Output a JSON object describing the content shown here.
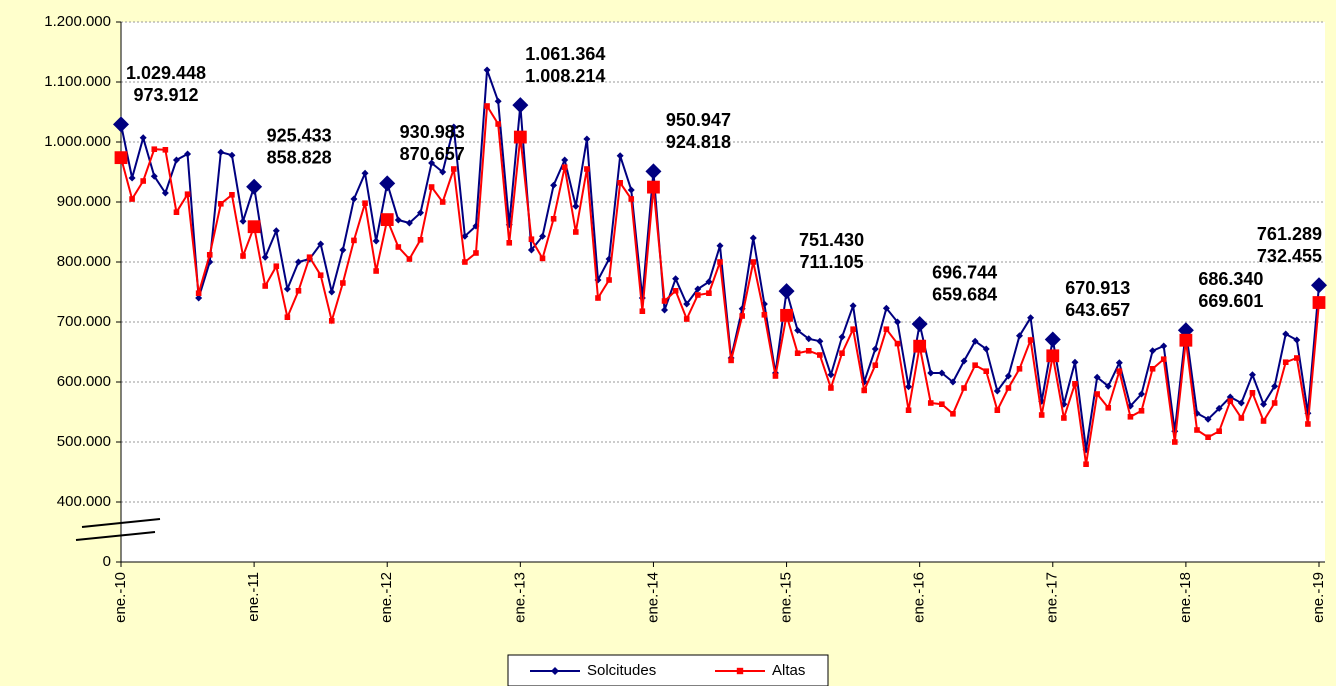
{
  "chart_data": {
    "type": "line",
    "categories": [
      "ene.-10",
      null,
      null,
      null,
      null,
      null,
      null,
      null,
      null,
      null,
      null,
      null,
      "ene.-11",
      null,
      null,
      null,
      null,
      null,
      null,
      null,
      null,
      null,
      null,
      null,
      "ene.-12",
      null,
      null,
      null,
      null,
      null,
      null,
      null,
      null,
      null,
      null,
      null,
      "ene.-13",
      null,
      null,
      null,
      null,
      null,
      null,
      null,
      null,
      null,
      null,
      null,
      "ene.-14",
      null,
      null,
      null,
      null,
      null,
      null,
      null,
      null,
      null,
      null,
      null,
      "ene.-15",
      null,
      null,
      null,
      null,
      null,
      null,
      null,
      null,
      null,
      null,
      null,
      "ene.-16",
      null,
      null,
      null,
      null,
      null,
      null,
      null,
      null,
      null,
      null,
      null,
      "ene.-17",
      null,
      null,
      null,
      null,
      null,
      null,
      null,
      null,
      null,
      null,
      null,
      "ene.-18",
      null,
      null,
      null,
      null,
      null,
      null,
      null,
      null,
      null,
      null,
      null,
      "ene.-19"
    ],
    "series": [
      {
        "name": "Solcitudes",
        "color": "#000080",
        "marker": "diamond",
        "values": [
          1029448,
          940000,
          1007000,
          943000,
          915000,
          970000,
          980000,
          740000,
          800000,
          983000,
          978000,
          868000,
          925433,
          808000,
          852000,
          755000,
          800000,
          805000,
          830000,
          750000,
          820000,
          905000,
          948000,
          835000,
          930983,
          870000,
          865000,
          882000,
          965000,
          950000,
          1025000,
          843000,
          860000,
          1120000,
          1068000,
          862000,
          1061364,
          820000,
          843000,
          928000,
          970000,
          893000,
          1005000,
          770000,
          805000,
          977000,
          920000,
          740000,
          950947,
          720000,
          772000,
          730000,
          755000,
          767000,
          827000,
          640000,
          722000,
          840000,
          730000,
          615000,
          751430,
          686000,
          672000,
          668000,
          612000,
          675000,
          727000,
          600000,
          655000,
          723000,
          700000,
          592000,
          696744,
          615000,
          615000,
          600000,
          635000,
          668000,
          655000,
          585000,
          610000,
          677000,
          707000,
          568000,
          670913,
          563000,
          633000,
          487000,
          608000,
          593000,
          632000,
          560000,
          580000,
          652000,
          660000,
          518000,
          686340,
          548000,
          538000,
          556000,
          575000,
          565000,
          612000,
          563000,
          593000,
          680000,
          670000,
          548000,
          761289
        ],
        "value_labels": [
          "1.029.448",
          null,
          null,
          null,
          null,
          null,
          null,
          null,
          null,
          null,
          null,
          null,
          "925.433",
          null,
          null,
          null,
          null,
          null,
          null,
          null,
          null,
          null,
          null,
          null,
          "930.983",
          null,
          null,
          null,
          null,
          null,
          null,
          null,
          null,
          null,
          null,
          null,
          "1.061.364",
          null,
          null,
          null,
          null,
          null,
          null,
          null,
          null,
          null,
          null,
          null,
          "950.947",
          null,
          null,
          null,
          null,
          null,
          null,
          null,
          null,
          null,
          null,
          null,
          "751.430",
          null,
          null,
          null,
          null,
          null,
          null,
          null,
          null,
          null,
          null,
          null,
          "696.744",
          null,
          null,
          null,
          null,
          null,
          null,
          null,
          null,
          null,
          null,
          null,
          "670.913",
          null,
          null,
          null,
          null,
          null,
          null,
          null,
          null,
          null,
          null,
          null,
          "686.340",
          null,
          null,
          null,
          null,
          null,
          null,
          null,
          null,
          null,
          null,
          null,
          "761.289"
        ]
      },
      {
        "name": "Altas",
        "color": "#ff0000",
        "marker": "square",
        "values": [
          973912,
          905000,
          935000,
          988000,
          987000,
          883000,
          913000,
          748000,
          812000,
          897000,
          912000,
          810000,
          858828,
          760000,
          793000,
          708000,
          752000,
          808000,
          778000,
          702000,
          765000,
          836000,
          898000,
          785000,
          870657,
          825000,
          805000,
          837000,
          925000,
          900000,
          955000,
          800000,
          815000,
          1060000,
          1030000,
          832000,
          1008214,
          838000,
          806000,
          872000,
          958000,
          850000,
          955000,
          740000,
          770000,
          932000,
          905000,
          718000,
          924818,
          735000,
          752000,
          705000,
          745000,
          748000,
          800000,
          636000,
          710000,
          800000,
          712000,
          610000,
          711105,
          648000,
          652000,
          645000,
          590000,
          648000,
          688000,
          586000,
          628000,
          688000,
          664000,
          553000,
          659684,
          565000,
          563000,
          547000,
          590000,
          628000,
          618000,
          553000,
          590000,
          622000,
          670000,
          545000,
          643657,
          540000,
          597000,
          463000,
          580000,
          557000,
          618000,
          542000,
          552000,
          622000,
          638000,
          500000,
          669601,
          520000,
          508000,
          518000,
          568000,
          540000,
          582000,
          535000,
          565000,
          633000,
          640000,
          530000,
          732455
        ],
        "value_labels": [
          "973.912",
          null,
          null,
          null,
          null,
          null,
          null,
          null,
          null,
          null,
          null,
          null,
          "858.828",
          null,
          null,
          null,
          null,
          null,
          null,
          null,
          null,
          null,
          null,
          null,
          "870.657",
          null,
          null,
          null,
          null,
          null,
          null,
          null,
          null,
          null,
          null,
          null,
          "1.008.214",
          null,
          null,
          null,
          null,
          null,
          null,
          null,
          null,
          null,
          null,
          null,
          "924.818",
          null,
          null,
          null,
          null,
          null,
          null,
          null,
          null,
          null,
          null,
          null,
          "711.105",
          null,
          null,
          null,
          null,
          null,
          null,
          null,
          null,
          null,
          null,
          null,
          "659.684",
          null,
          null,
          null,
          null,
          null,
          null,
          null,
          null,
          null,
          null,
          null,
          "643.657",
          null,
          null,
          null,
          null,
          null,
          null,
          null,
          null,
          null,
          null,
          null,
          "669.601",
          null,
          null,
          null,
          null,
          null,
          null,
          null,
          null,
          null,
          null,
          null,
          "732.455"
        ]
      }
    ],
    "ylim": [
      0,
      1200000
    ],
    "axis_break": [
      0,
      400000
    ],
    "yticks": [
      0,
      {
        "value": 400000,
        "label": "400.000"
      },
      {
        "value": 500000,
        "label": "500.000"
      },
      {
        "value": 600000,
        "label": "600.000"
      },
      {
        "value": 700000,
        "label": "700.000"
      },
      {
        "value": 800000,
        "label": "800.000"
      },
      {
        "value": 900000,
        "label": "900.000"
      },
      {
        "value": 1000000,
        "label": "1.000.000"
      },
      {
        "value": 1100000,
        "label": "1.100.000"
      },
      {
        "value": 1200000,
        "label": "1.200.000"
      }
    ],
    "grid": true,
    "legend": "bottom"
  }
}
